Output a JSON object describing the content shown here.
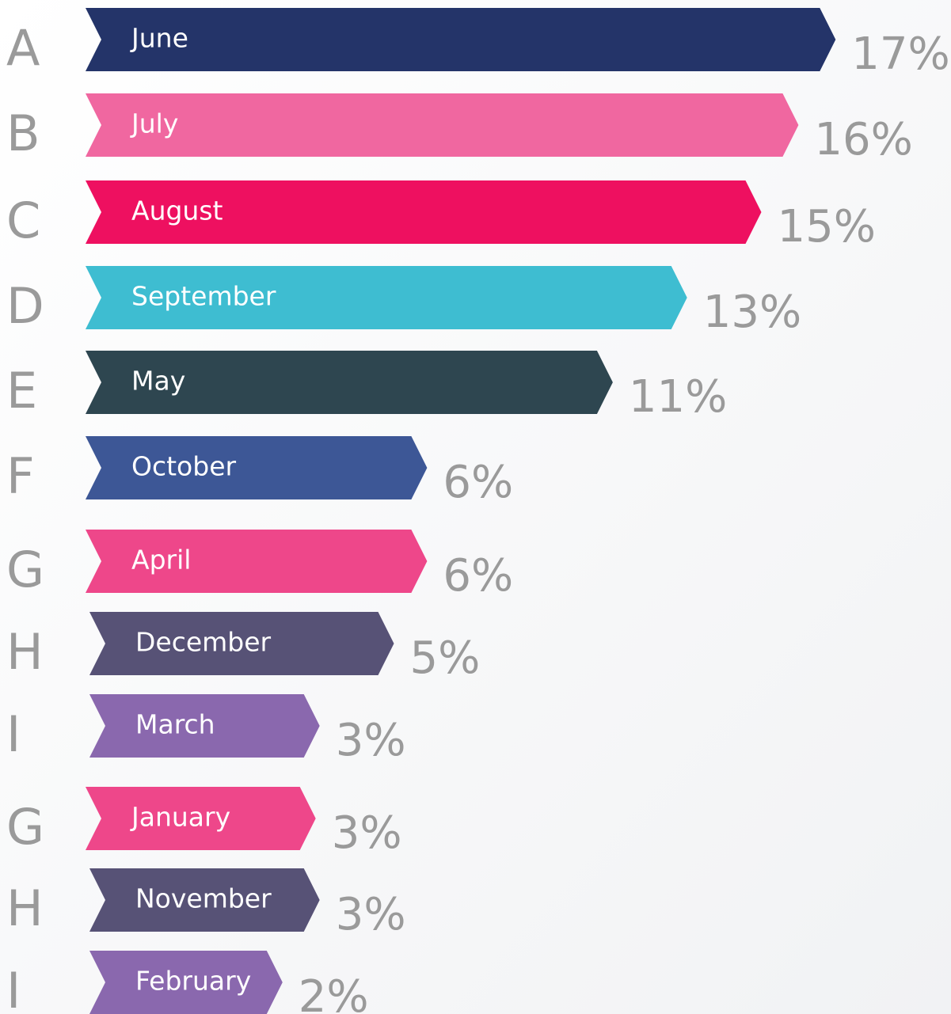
{
  "chart_data": {
    "type": "bar",
    "letters": [
      "A",
      "B",
      "C",
      "D",
      "E",
      "F",
      "G",
      "H",
      "I",
      "G",
      "H",
      "I"
    ],
    "categories": [
      "June",
      "July",
      "August",
      "September",
      "May",
      "October",
      "April",
      "December",
      "March",
      "January",
      "November",
      "February"
    ],
    "values": [
      17,
      16,
      15,
      13,
      11,
      6,
      6,
      5,
      3,
      3,
      3,
      2
    ],
    "value_labels": [
      "17%",
      "16%",
      "15%",
      "13%",
      "11%",
      "6%",
      "6%",
      "5%",
      "3%",
      "3%",
      "3%",
      "2%"
    ],
    "colors": [
      "#243469",
      "#f067a0",
      "#ee1060",
      "#3ebdd1",
      "#2e4650",
      "#3d5796",
      "#ee478a",
      "#575276",
      "#8a68ae",
      "#ee478a",
      "#575276",
      "#8a68ae"
    ]
  }
}
